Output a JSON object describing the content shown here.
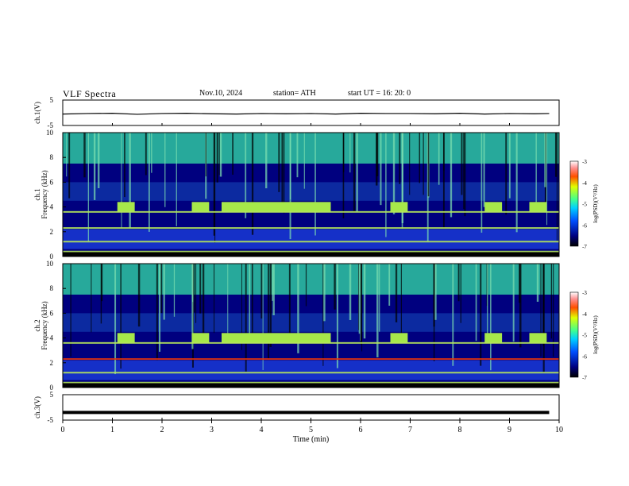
{
  "header": {
    "title": "VLF  Spectra",
    "date": "Nov.10, 2024",
    "station": "station= ATH",
    "start": "start  UT  =    16: 20: 0"
  },
  "chart_data": [
    {
      "type": "line",
      "name": "ch1-waveform",
      "ylabel": "ch.1(V)",
      "ylim": [
        -5,
        5
      ],
      "yticks": [
        "5",
        "-5"
      ],
      "xlim": [
        0,
        10
      ],
      "x": [
        0,
        0.5,
        1,
        1.5,
        2,
        2.5,
        3,
        3.5,
        4,
        4.5,
        5,
        5.5,
        6,
        6.5,
        7,
        7.5,
        8,
        8.5,
        9,
        9.5,
        9.8
      ],
      "values": [
        -0.5,
        -0.3,
        -0.2,
        -0.6,
        -0.3,
        -0.2,
        -0.4,
        -0.5,
        -0.3,
        -0.4,
        -0.3,
        -0.5,
        -0.2,
        -0.3,
        -0.3,
        -0.4,
        -0.2,
        -0.5,
        -0.3,
        -0.4,
        -0.3
      ]
    },
    {
      "type": "heatmap",
      "name": "ch1-spectrogram",
      "ylabel": "ch.1\nFrequency (kHz)",
      "ylim": [
        0,
        10
      ],
      "yticks": [
        "0",
        "2",
        "4",
        "6",
        "8",
        "10"
      ],
      "xlim": [
        0,
        10
      ],
      "colorbar": {
        "label": "log(PSD)(V²/Hz)",
        "range": [
          -7,
          -3
        ],
        "ticks": [
          "-3",
          "-4",
          "-5",
          "-6",
          "-7"
        ]
      },
      "high_band_khz": [
        7.5,
        10
      ],
      "tone_bursts_min": [
        [
          1.1,
          1.45
        ],
        [
          2.6,
          2.95
        ],
        [
          3.2,
          5.4
        ],
        [
          6.6,
          6.95
        ],
        [
          8.5,
          8.85
        ],
        [
          9.4,
          9.75
        ]
      ],
      "tone_khz": 4
    },
    {
      "type": "heatmap",
      "name": "ch2-spectrogram",
      "ylabel": "ch.2\nFrequency (kHz)",
      "ylim": [
        0,
        10
      ],
      "yticks": [
        "0",
        "2",
        "4",
        "6",
        "8",
        "10"
      ],
      "xlim": [
        0,
        10
      ],
      "colorbar": {
        "label": "log(PSD)(V²/Hz)",
        "range": [
          -7,
          -3
        ],
        "ticks": [
          "-3",
          "-4",
          "-5",
          "-6",
          "-7"
        ]
      },
      "high_band_khz": [
        7.5,
        10
      ],
      "tone_bursts_min": [
        [
          1.1,
          1.45
        ],
        [
          2.6,
          2.95
        ],
        [
          3.2,
          5.4
        ],
        [
          6.6,
          6.95
        ],
        [
          8.5,
          8.85
        ],
        [
          9.4,
          9.75
        ]
      ],
      "tone_khz": 4
    },
    {
      "type": "line",
      "name": "ch3-waveform",
      "ylabel": "ch.3(V)",
      "ylim": [
        -5,
        5
      ],
      "yticks": [
        "5",
        "-5"
      ],
      "xlim": [
        0,
        10
      ],
      "x": [
        0,
        9.8
      ],
      "values": [
        -2,
        -2
      ]
    }
  ],
  "xaxis": {
    "label": "Time  (min)",
    "ticks": [
      "0",
      "1",
      "2",
      "3",
      "4",
      "5",
      "6",
      "7",
      "8",
      "9",
      "10"
    ]
  },
  "colors": {
    "background": "#00007f",
    "low_band": "#1530c8",
    "high_band": "#2ec7a0",
    "tone": "#a6e84a",
    "mains": "#e8320a",
    "waveform": "#000000"
  }
}
